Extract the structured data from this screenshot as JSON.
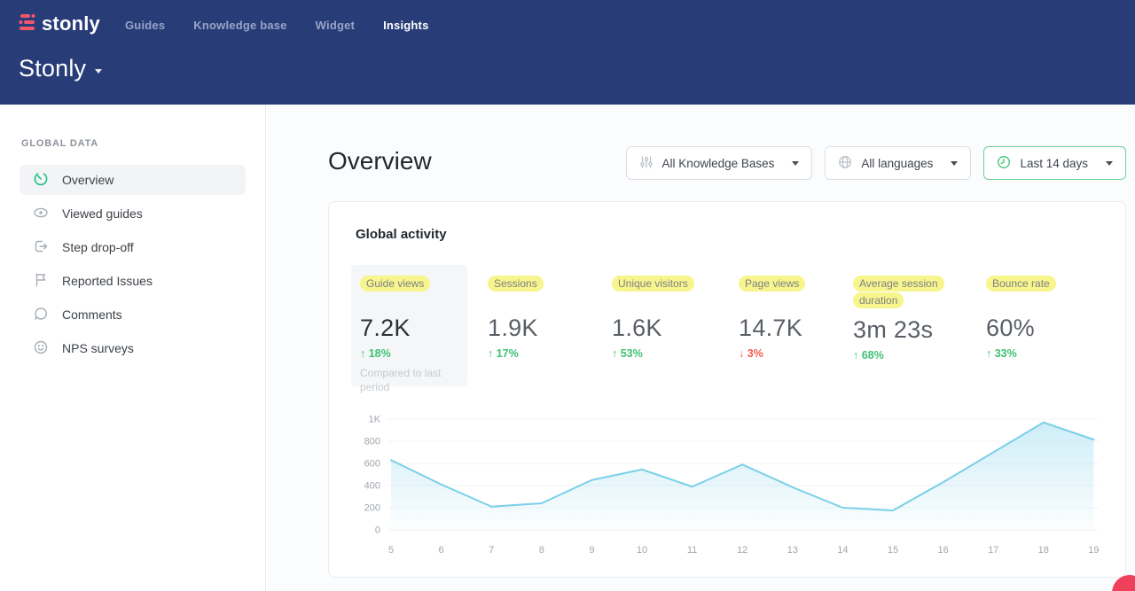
{
  "navbar": {
    "logo_text": "stonly",
    "items": [
      {
        "label": "Guides",
        "active": false
      },
      {
        "label": "Knowledge base",
        "active": false
      },
      {
        "label": "Widget",
        "active": false
      },
      {
        "label": "Insights",
        "active": true
      }
    ],
    "workspace_title": "Stonly"
  },
  "sidebar": {
    "section_label": "GLOBAL DATA",
    "items": [
      {
        "label": "Overview",
        "icon": "gauge-icon",
        "selected": true
      },
      {
        "label": "Viewed guides",
        "icon": "eye-icon",
        "selected": false
      },
      {
        "label": "Step drop-off",
        "icon": "step-dropoff-icon",
        "selected": false
      },
      {
        "label": "Reported Issues",
        "icon": "flag-icon",
        "selected": false
      },
      {
        "label": "Comments",
        "icon": "comment-icon",
        "selected": false
      },
      {
        "label": "NPS surveys",
        "icon": "smiley-icon",
        "selected": false
      }
    ]
  },
  "main": {
    "title": "Overview",
    "filters": [
      {
        "label": "All Knowledge Bases",
        "icon": "sliders-icon",
        "accent": false
      },
      {
        "label": "All languages",
        "icon": "globe-icon",
        "accent": false
      },
      {
        "label": "Last 14 days",
        "icon": "clock-icon",
        "accent": true
      }
    ],
    "card": {
      "title": "Global activity",
      "metrics": [
        {
          "label": "Guide views",
          "value": "7.2K",
          "arrow": "↑",
          "delta": "18%",
          "direction": "up",
          "note": "Compared to last period",
          "selected": true
        },
        {
          "label": "Sessions",
          "value": "1.9K",
          "arrow": "↑",
          "delta": "17%",
          "direction": "up",
          "note": "",
          "selected": false
        },
        {
          "label": "Unique visitors",
          "value": "1.6K",
          "arrow": "↑",
          "delta": "53%",
          "direction": "up",
          "note": "",
          "selected": false
        },
        {
          "label": "Page views",
          "value": "14.7K",
          "arrow": "↓",
          "delta": "3%",
          "direction": "down",
          "note": "",
          "selected": false
        },
        {
          "label": "Average session duration",
          "value": "3m 23s",
          "arrow": "↑",
          "delta": "68%",
          "direction": "up",
          "note": "",
          "selected": false
        },
        {
          "label": "Bounce rate",
          "value": "60%",
          "arrow": "↑",
          "delta": "33%",
          "direction": "up",
          "note": "",
          "selected": false
        }
      ]
    }
  },
  "chart_data": {
    "type": "area",
    "title": "Global activity — Guide views, last 14 days",
    "x": [
      5,
      6,
      7,
      8,
      9,
      10,
      11,
      12,
      13,
      14,
      15,
      16,
      17,
      18,
      19
    ],
    "values": [
      630,
      410,
      210,
      240,
      450,
      545,
      390,
      590,
      385,
      200,
      175,
      430,
      700,
      970,
      815
    ],
    "ylim": [
      0,
      1000
    ],
    "ytick_step": 200,
    "ytick_labels": [
      "0",
      "200",
      "400",
      "600",
      "800",
      "1K"
    ],
    "grid": true,
    "legend": "none",
    "line_color": "#7ad0e8",
    "fill_color": "#a7dff1",
    "grid_color": "#f0f3f6",
    "tick_color": "#a0a6ad"
  },
  "colors": {
    "navbar_bg": "#283d78",
    "brand_pink": "#f2566b",
    "accent_green": "#3fc173",
    "delta_red": "#f25c50",
    "highlight_yellow": "#f7f58c",
    "selected_item_bg": "#f3f4f6"
  }
}
